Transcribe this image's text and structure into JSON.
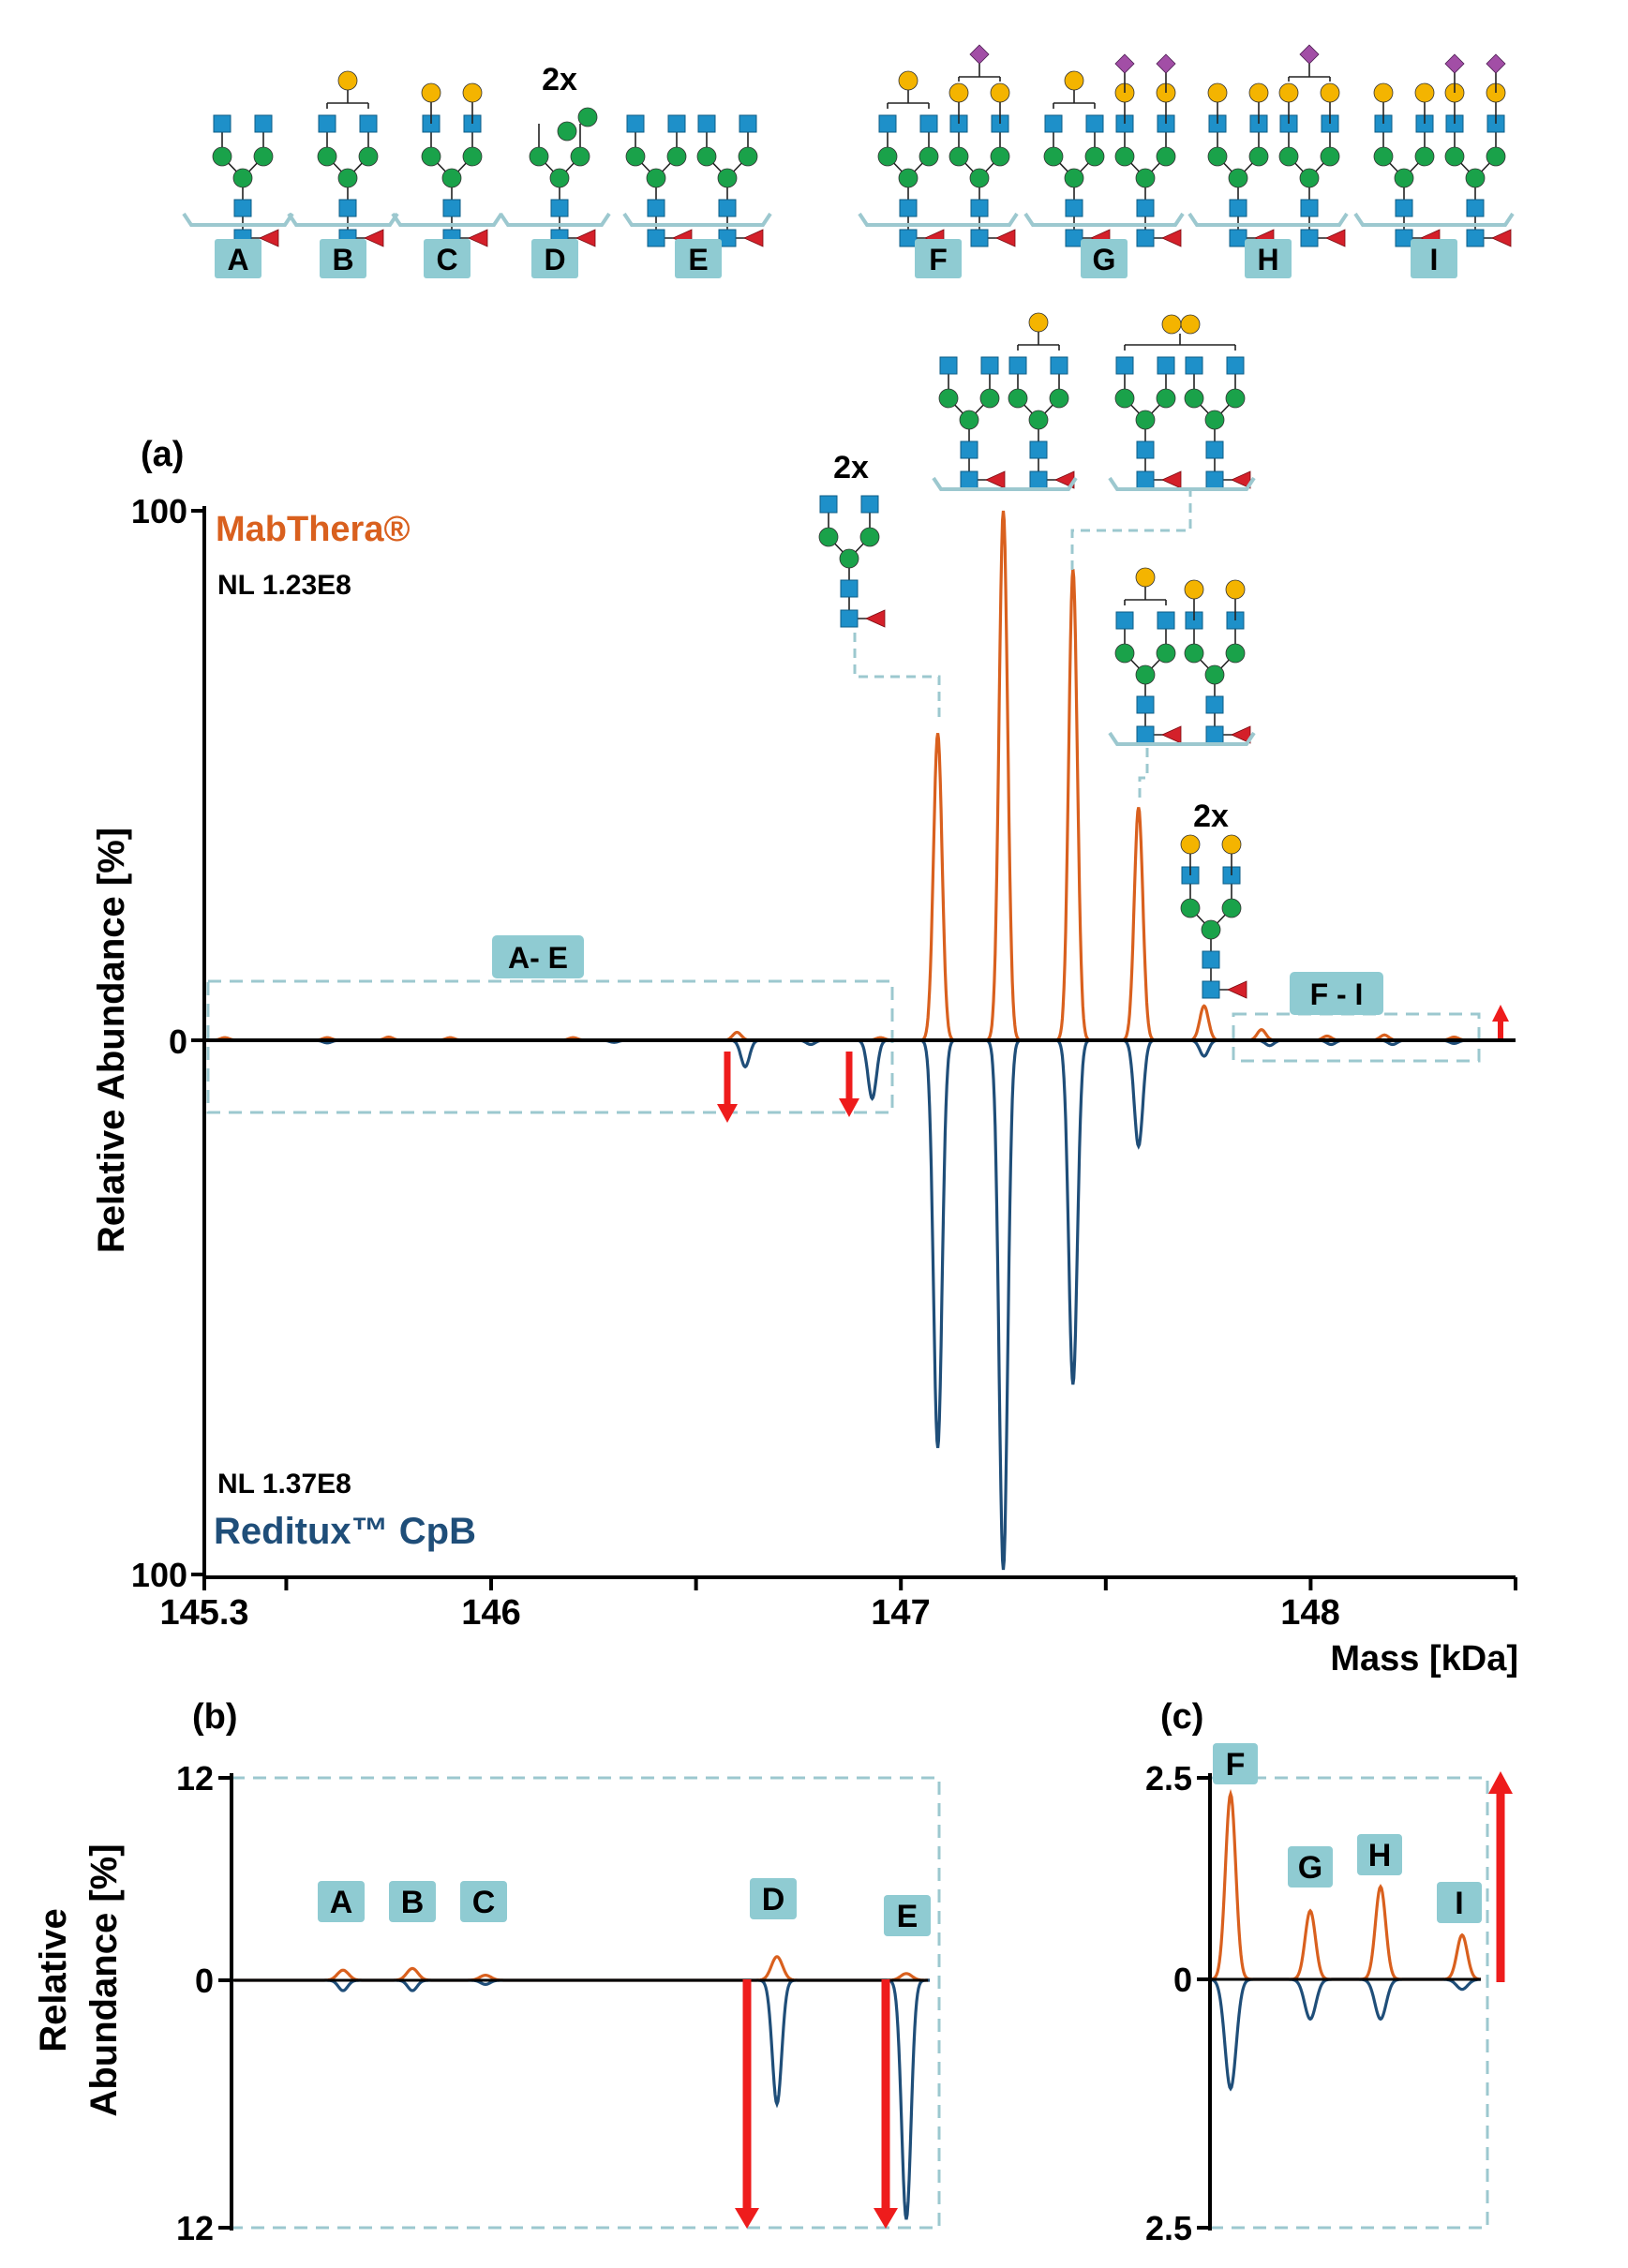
{
  "colors": {
    "mabthera": "#d9601e",
    "reditux": "#1f4e79",
    "frame": "#9cc8cf",
    "label_bg": "#8fcbd2",
    "arrow": "#ee1c1c",
    "glcnac": "#1e90c9",
    "mannose": "#1aa24a",
    "galactose": "#f4b400",
    "sialic": "#a24ea6",
    "fucose": "#d4202a",
    "axis": "#000000"
  },
  "legend_glycans": [
    {
      "id": "A",
      "label": "A",
      "prefix": ""
    },
    {
      "id": "B",
      "label": "B",
      "prefix": ""
    },
    {
      "id": "C",
      "label": "C",
      "prefix": ""
    },
    {
      "id": "D",
      "label": "D",
      "prefix": "2x"
    },
    {
      "id": "E",
      "label": "E",
      "prefix": ""
    },
    {
      "id": "F",
      "label": "F",
      "prefix": ""
    },
    {
      "id": "G",
      "label": "G",
      "prefix": ""
    },
    {
      "id": "H",
      "label": "H",
      "prefix": ""
    },
    {
      "id": "I",
      "label": "I",
      "prefix": ""
    }
  ],
  "panel_a": {
    "label": "(a)",
    "top_series_name": "MabThera®",
    "top_nl": "NL 1.23E8",
    "bottom_series_name": "Reditux™ CpB",
    "bottom_nl": "NL 1.37E8",
    "ylabel": "Relative Abundance [%]",
    "xlabel": "Mass [kDa]",
    "y_top_tick": "100",
    "y_zero_tick": "0",
    "y_bottom_tick": "100",
    "x_ticks": [
      "145.3",
      "146",
      "147",
      "148"
    ],
    "box_ae_label": "A- E",
    "box_fi_label": "F - I",
    "annot_2x_left": "2x",
    "annot_2x_right": "2x"
  },
  "panel_b": {
    "label": "(b)",
    "ylabel_line1": "Relative",
    "ylabel_line2": "Abundance [%]",
    "y_top_tick": "12",
    "y_zero_tick": "0",
    "y_bottom_tick": "12",
    "peak_labels": [
      "A",
      "B",
      "C",
      "D",
      "E"
    ]
  },
  "panel_c": {
    "label": "(c)",
    "y_top_tick": "2.5",
    "y_zero_tick": "0",
    "y_bottom_tick": "2.5",
    "peak_labels": [
      "F",
      "G",
      "H",
      "I"
    ]
  },
  "chart_data": [
    {
      "panel": "(a)",
      "type": "line",
      "title": "",
      "xlabel": "Mass [kDa]",
      "ylabel": "Relative Abundance [%]",
      "xlim": [
        145.3,
        148.5
      ],
      "ylim": [
        -100,
        100
      ],
      "series": [
        {
          "name": "MabThera®",
          "direction": "up",
          "peaks": [
            {
              "mass": 145.35,
              "value": 0.5
            },
            {
              "mass": 145.6,
              "value": 0.5
            },
            {
              "mass": 145.75,
              "value": 0.6
            },
            {
              "mass": 145.9,
              "value": 0.5
            },
            {
              "mass": 146.2,
              "value": 0.5
            },
            {
              "mass": 146.6,
              "value": 1.5
            },
            {
              "mass": 146.95,
              "value": 0.5
            },
            {
              "mass": 147.09,
              "value": 58
            },
            {
              "mass": 147.25,
              "value": 100
            },
            {
              "mass": 147.42,
              "value": 89
            },
            {
              "mass": 147.58,
              "value": 44
            },
            {
              "mass": 147.74,
              "value": 6.5
            },
            {
              "mass": 147.88,
              "value": 2.0
            },
            {
              "mass": 148.04,
              "value": 0.8
            },
            {
              "mass": 148.18,
              "value": 1.0
            },
            {
              "mass": 148.35,
              "value": 0.6
            }
          ]
        },
        {
          "name": "Reditux™ CpB",
          "direction": "down",
          "peaks": [
            {
              "mass": 145.6,
              "value": 0.5
            },
            {
              "mass": 146.3,
              "value": 0.4
            },
            {
              "mass": 146.62,
              "value": 5
            },
            {
              "mass": 146.78,
              "value": 0.8
            },
            {
              "mass": 146.93,
              "value": 11
            },
            {
              "mass": 147.09,
              "value": 77
            },
            {
              "mass": 147.25,
              "value": 100
            },
            {
              "mass": 147.42,
              "value": 65
            },
            {
              "mass": 147.58,
              "value": 20
            },
            {
              "mass": 147.74,
              "value": 3
            },
            {
              "mass": 147.9,
              "value": 1.0
            },
            {
              "mass": 148.05,
              "value": 0.8
            },
            {
              "mass": 148.2,
              "value": 0.8
            },
            {
              "mass": 148.35,
              "value": 0.6
            }
          ]
        }
      ]
    },
    {
      "panel": "(b)",
      "type": "line",
      "xlabel": "",
      "ylabel": "Relative Abundance [%]",
      "ylim": [
        -12,
        12
      ],
      "categories": [
        "A",
        "B",
        "C",
        "D",
        "E"
      ],
      "series": [
        {
          "name": "MabThera®",
          "direction": "up",
          "values": [
            0.6,
            0.7,
            0.3,
            1.4,
            0.4
          ]
        },
        {
          "name": "Reditux™ CpB",
          "direction": "down",
          "values": [
            0.5,
            0.5,
            0.2,
            6.0,
            11.6
          ]
        }
      ]
    },
    {
      "panel": "(c)",
      "type": "line",
      "xlabel": "",
      "ylabel": "",
      "ylim": [
        -2.5,
        2.5
      ],
      "categories": [
        "F",
        "G",
        "H",
        "I"
      ],
      "series": [
        {
          "name": "MabThera®",
          "direction": "up",
          "values": [
            2.3,
            0.85,
            1.15,
            0.55
          ]
        },
        {
          "name": "Reditux™ CpB",
          "direction": "down",
          "values": [
            1.1,
            0.4,
            0.4,
            0.1
          ]
        }
      ]
    }
  ]
}
